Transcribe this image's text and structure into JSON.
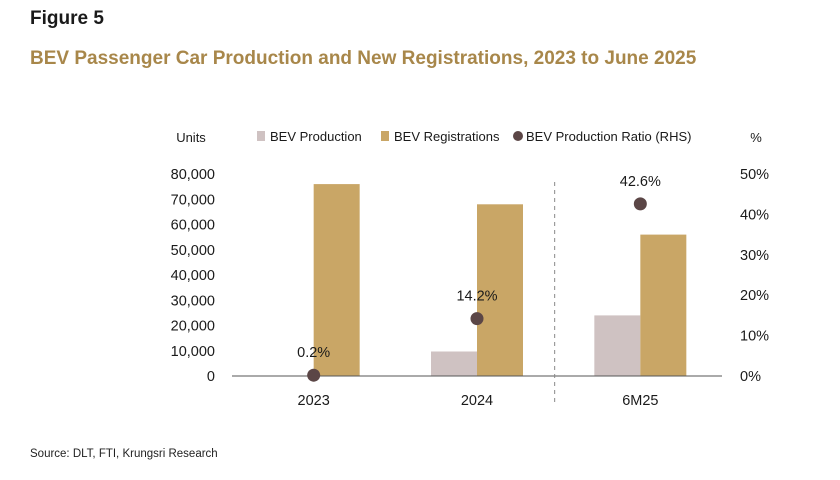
{
  "figure": {
    "label": "Figure 5",
    "title": "BEV Passenger Car Production and New Registrations, 2023 to June 2025"
  },
  "source": "Source: DLT, FTI,  Krungsri Research",
  "colors": {
    "production": "#cfc2c2",
    "registrations": "#c9a666",
    "ratio": "#5b4646",
    "title": "#a8874a",
    "axis": "#555555",
    "divider": "#888888"
  },
  "chart_data": {
    "type": "bar",
    "categories": [
      "2023",
      "2024",
      "6M25"
    ],
    "series": [
      {
        "name": "BEV Production",
        "values": [
          0,
          9700,
          24000
        ],
        "axis": "left"
      },
      {
        "name": "BEV Registrations",
        "values": [
          76000,
          68000,
          56000
        ],
        "axis": "left"
      }
    ],
    "ratio_series": {
      "name": "BEV Production Ratio (RHS)",
      "values": [
        0.2,
        14.2,
        42.6
      ],
      "labels": [
        "0.2%",
        "14.2%",
        "42.6%"
      ],
      "axis": "right",
      "type": "scatter"
    },
    "left_axis": {
      "label": "Units",
      "ylim": [
        0,
        80000
      ],
      "ticks": [
        0,
        10000,
        20000,
        30000,
        40000,
        50000,
        60000,
        70000,
        80000
      ],
      "tick_labels": [
        "0",
        "10,000",
        "20,000",
        "30,000",
        "40,000",
        "50,000",
        "60,000",
        "70,000",
        "80,000"
      ]
    },
    "right_axis": {
      "label": "%",
      "ylim": [
        0,
        50
      ],
      "ticks": [
        0,
        10,
        20,
        30,
        40,
        50
      ],
      "tick_labels": [
        "0%",
        "10%",
        "20%",
        "30%",
        "40%",
        "50%"
      ]
    },
    "legend_position": "top",
    "annotations": [
      "dashed divider between 2024 and 6M25"
    ],
    "grid": false
  }
}
